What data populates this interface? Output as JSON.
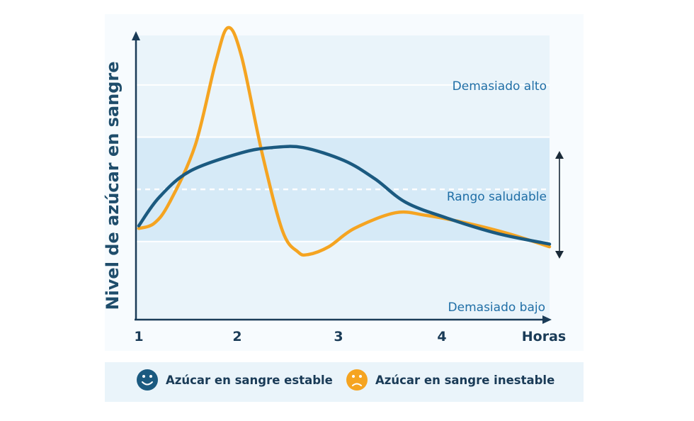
{
  "chart_data": {
    "type": "line",
    "ylabel": "Nivel de azúcar en sangre",
    "xlabel": "Horas",
    "xlim": [
      1,
      5
    ],
    "ylim": [
      0,
      100
    ],
    "ticks": [
      "1",
      "2",
      "3",
      "4"
    ],
    "zones": {
      "high_label": "Demasiado alto",
      "healthy_label": "Rango saludable",
      "low_label": "Demasiado bajo",
      "healthy_range": [
        21,
        61
      ],
      "healthy_mid": 41,
      "lines": [
        21,
        61,
        81
      ]
    },
    "series": [
      {
        "name": "Azúcar en sangre estable",
        "color": "#1b5a80",
        "x": [
          1.0,
          1.2,
          1.5,
          2.0,
          2.3,
          2.6,
          3.0,
          3.3,
          3.6,
          4.0,
          4.5,
          5.0
        ],
        "y": [
          27,
          38,
          48,
          55,
          57,
          57,
          52,
          45,
          36,
          30,
          24,
          20
        ]
      },
      {
        "name": "Azúcar en sangre inestable",
        "color": "#f5a421",
        "x": [
          1.0,
          1.15,
          1.3,
          1.55,
          1.75,
          1.87,
          2.0,
          2.2,
          2.4,
          2.55,
          2.65,
          2.85,
          3.1,
          3.5,
          3.8,
          4.2,
          4.6,
          5.0
        ],
        "y": [
          26,
          28,
          36,
          58,
          90,
          103,
          92,
          55,
          25,
          17,
          16,
          19,
          26,
          32,
          31,
          28,
          24,
          19
        ]
      }
    ]
  },
  "colors": {
    "background_outer": "#eaf4fa",
    "healthy_band": "#d6eaf7",
    "grid_line": "#ffffff",
    "axis": "#1a3b57",
    "zone_text": "#1f6ea6"
  },
  "legend": {
    "stable_label": "Azúcar en sangre estable",
    "stable_icon": "smiley-face-icon",
    "unstable_label": "Azúcar en sangre inestable",
    "unstable_icon": "frown-face-icon"
  }
}
